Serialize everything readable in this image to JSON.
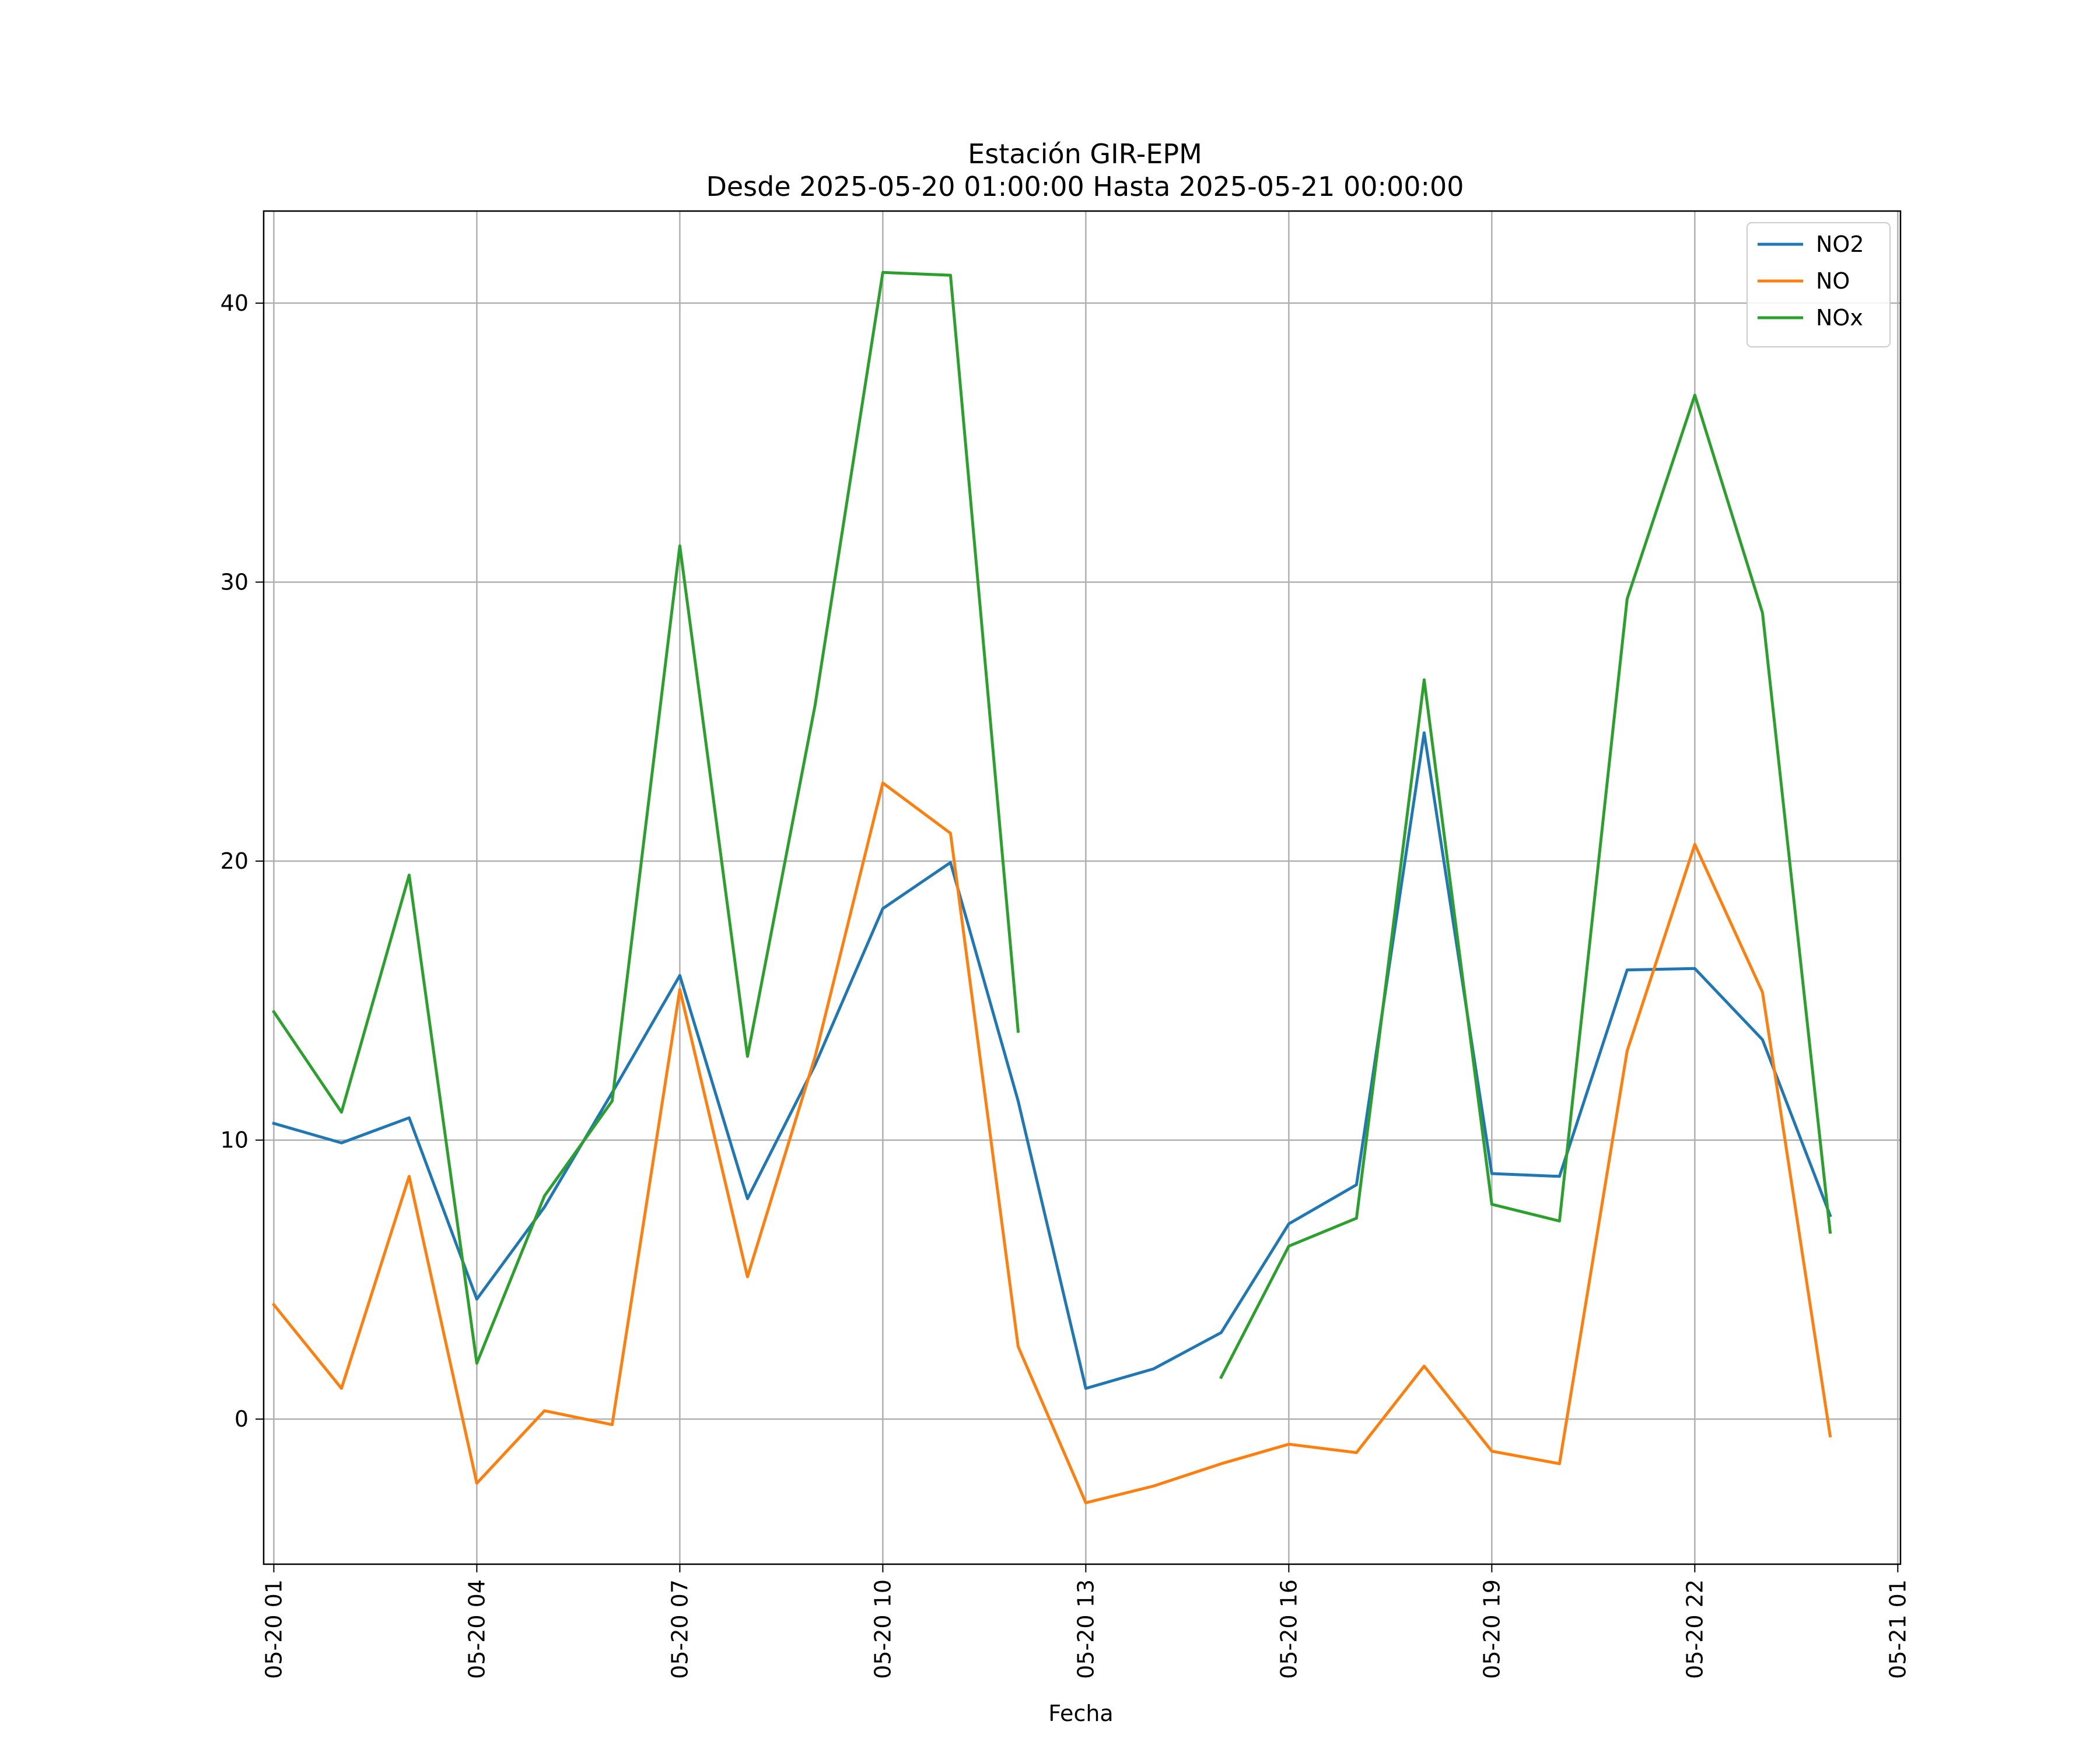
{
  "chart_data": {
    "type": "line",
    "title": "Estación GIR-EPM",
    "subtitle": "Desde 2025-05-20 01:00:00 Hasta 2025-05-21 00:00:00",
    "xlabel": "Fecha",
    "ylabel": "",
    "x": [
      "05-20 01",
      "05-20 02",
      "05-20 03",
      "05-20 04",
      "05-20 05",
      "05-20 06",
      "05-20 07",
      "05-20 08",
      "05-20 09",
      "05-20 10",
      "05-20 11",
      "05-20 12",
      "05-20 13",
      "05-20 14",
      "05-20 15",
      "05-20 16",
      "05-20 17",
      "05-20 18",
      "05-20 19",
      "05-20 20",
      "05-20 21",
      "05-20 22",
      "05-20 23",
      "05-21 00"
    ],
    "xlim": [
      "05-20 00",
      "05-21 01"
    ],
    "x_ticks": [
      "05-20 01",
      "05-20 04",
      "05-20 07",
      "05-20 10",
      "05-20 13",
      "05-20 16",
      "05-20 19",
      "05-20 22",
      "05-21 01"
    ],
    "ylim": [
      -5.2,
      43.3
    ],
    "y_ticks": [
      0,
      10,
      20,
      30,
      40
    ],
    "grid": true,
    "legend": "top-right",
    "series": [
      {
        "name": "NO2",
        "color": "#1f77b4",
        "values": [
          10.6,
          9.9,
          10.8,
          4.3,
          7.6,
          11.7,
          15.9,
          7.9,
          12.7,
          18.3,
          19.95,
          11.4,
          1.1,
          1.8,
          3.1,
          7.0,
          8.4,
          24.6,
          8.8,
          8.7,
          16.1,
          16.15,
          13.6,
          7.3
        ]
      },
      {
        "name": "NO",
        "color": "#ff7f0e",
        "values": [
          4.1,
          1.1,
          8.7,
          -2.3,
          0.3,
          -0.2,
          15.4,
          5.1,
          13.0,
          22.8,
          21.0,
          2.6,
          -3.0,
          -2.4,
          -1.6,
          -0.9,
          -1.2,
          1.9,
          -1.15,
          -1.6,
          13.2,
          20.6,
          15.3,
          -0.6
        ]
      },
      {
        "name": "NOx",
        "color": "#2ca02c",
        "values": [
          14.6,
          11.0,
          19.5,
          2.0,
          8.0,
          11.4,
          31.3,
          13.0,
          25.6,
          41.1,
          41.0,
          13.9,
          null,
          null,
          1.5,
          6.2,
          7.2,
          26.5,
          7.7,
          7.1,
          29.4,
          36.7,
          28.9,
          6.7
        ]
      }
    ]
  }
}
